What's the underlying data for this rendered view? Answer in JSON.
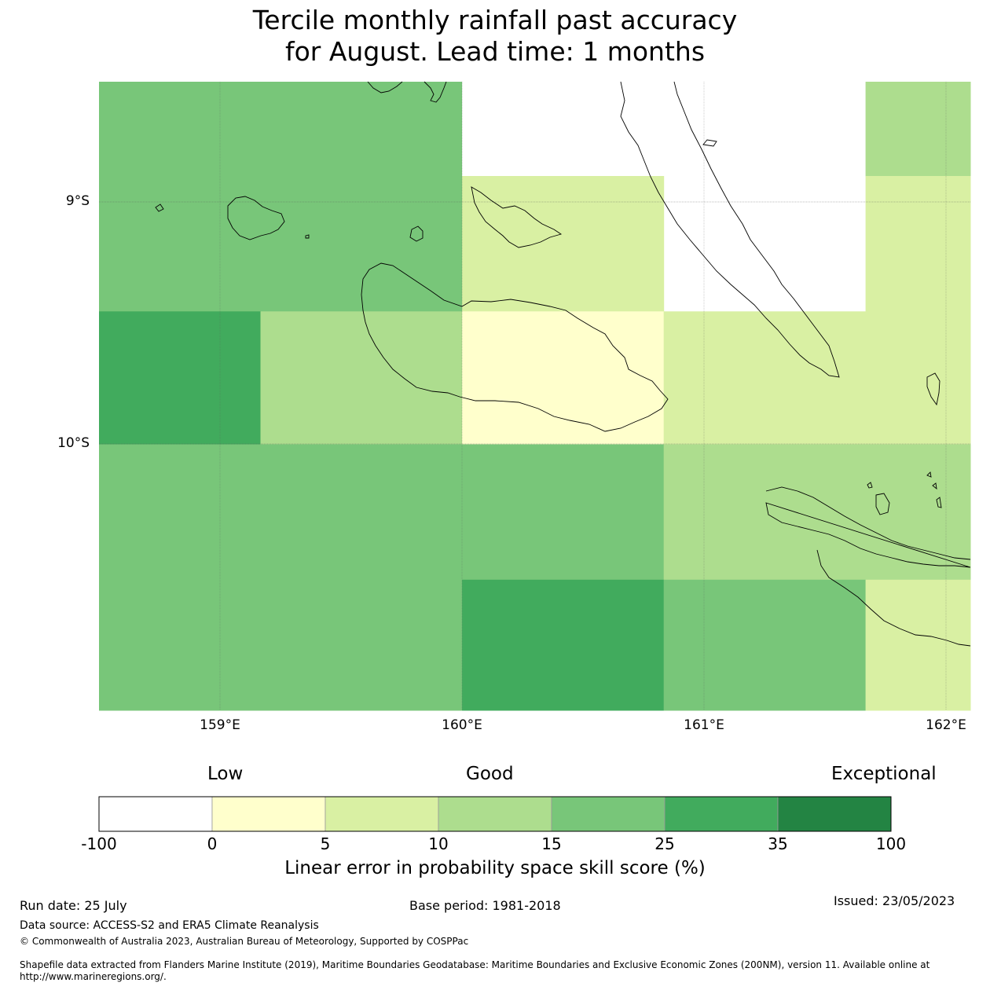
{
  "title": {
    "line1": "Tercile monthly rainfall past accuracy",
    "line2": "for August. Lead time: 1 months"
  },
  "map": {
    "lat_labels": [
      "9°S",
      "10°S"
    ],
    "lon_labels": [
      "159°E",
      "160°E",
      "161°E",
      "162°E"
    ],
    "lon_range": [
      158.5,
      162.1
    ],
    "lat_range": [
      -11.1,
      -8.5
    ],
    "cells_skill_pct": [
      {
        "lon": [
          158.5,
          160.0
        ],
        "lat": [
          -9.45,
          -8.5
        ],
        "value": 20,
        "class": "15-25"
      },
      {
        "lon": [
          160.0,
          160.833
        ],
        "lat": [
          -8.89,
          -8.5
        ],
        "value": -50,
        "class": "-100-0"
      },
      {
        "lon": [
          160.833,
          161.667
        ],
        "lat": [
          -9.45,
          -8.5
        ],
        "value": -50,
        "class": "-100-0"
      },
      {
        "lon": [
          161.667,
          162.1
        ],
        "lat": [
          -8.89,
          -8.5
        ],
        "value": 12,
        "class": "10-15"
      },
      {
        "lon": [
          160.0,
          160.833
        ],
        "lat": [
          -9.45,
          -8.89
        ],
        "value": 7,
        "class": "5-10"
      },
      {
        "lon": [
          161.667,
          162.1
        ],
        "lat": [
          -9.45,
          -8.89
        ],
        "value": 7,
        "class": "5-10"
      },
      {
        "lon": [
          158.5,
          159.167
        ],
        "lat": [
          -10.0,
          -9.45
        ],
        "value": 30,
        "class": "25-35"
      },
      {
        "lon": [
          159.167,
          160.0
        ],
        "lat": [
          -10.0,
          -9.45
        ],
        "value": 12,
        "class": "10-15"
      },
      {
        "lon": [
          160.0,
          160.833
        ],
        "lat": [
          -10.0,
          -9.45
        ],
        "value": 2,
        "class": "0-5"
      },
      {
        "lon": [
          160.833,
          162.1
        ],
        "lat": [
          -10.0,
          -9.45
        ],
        "value": 7,
        "class": "5-10"
      },
      {
        "lon": [
          158.5,
          160.0
        ],
        "lat": [
          -11.1,
          -10.0
        ],
        "value": 20,
        "class": "15-25"
      },
      {
        "lon": [
          160.0,
          160.833
        ],
        "lat": [
          -10.56,
          -10.0
        ],
        "value": 20,
        "class": "15-25"
      },
      {
        "lon": [
          160.833,
          162.1
        ],
        "lat": [
          -10.56,
          -10.0
        ],
        "value": 12,
        "class": "10-15"
      },
      {
        "lon": [
          160.0,
          160.833
        ],
        "lat": [
          -11.1,
          -10.56
        ],
        "value": 30,
        "class": "25-35"
      },
      {
        "lon": [
          160.833,
          161.667
        ],
        "lat": [
          -11.1,
          -10.56
        ],
        "value": 20,
        "class": "15-25"
      },
      {
        "lon": [
          161.667,
          162.1
        ],
        "lat": [
          -11.1,
          -10.56
        ],
        "value": 7,
        "class": "5-10"
      }
    ]
  },
  "colorbar": {
    "words": [
      "Low",
      "Good",
      "Exceptional"
    ],
    "ticks": [
      "-100",
      "0",
      "5",
      "10",
      "15",
      "25",
      "35",
      "100"
    ],
    "colors": [
      "#ffffff",
      "#ffffcc",
      "#d9f0a3",
      "#addd8e",
      "#78c679",
      "#41ab5d",
      "#238443"
    ],
    "title": "Linear error in probability space skill score (%)"
  },
  "footer": {
    "run_date": "Run date: 25 July",
    "base_period": "Base period: 1981-2018",
    "issued": "Issued: 23/05/2023",
    "data_source": "Data source: ACCESS-S2 and ERA5 Climate Reanalysis",
    "copyright": "© Commonwealth of Australia 2023, Australian Bureau of Meteorology, Supported by COSPPac",
    "shapefile_line1": "Shapefile data extracted from Flanders Marine Institute (2019), Maritime Boundaries Geodatabase: Maritime Boundaries and Exclusive Economic Zones (200NM), version 11. Available online at",
    "shapefile_line2": "http://www.marineregions.org/."
  }
}
